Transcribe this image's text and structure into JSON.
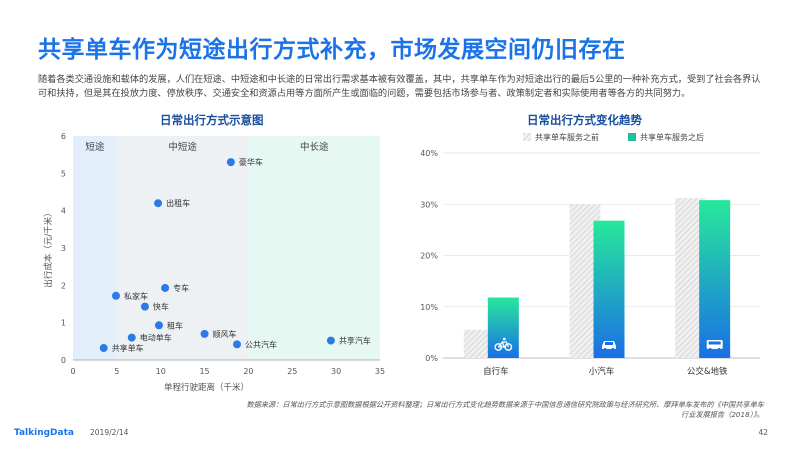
{
  "header": {
    "title": "共享单车作为短途出行方式补充，市场发展空间仍旧存在",
    "intro": "随着各类交通设施和载体的发展，人们在短途、中短途和中长途的日常出行需求基本被有效覆盖，其中，共享单车作为对短途出行的最后5公里的一种补充方式，受到了社会各界认可和扶持，但是其在投放力度、停放秩序、交通安全和资源占用等方面所产生或面临的问题，需要包括市场参与者、政策制定者和实际使用者等各方的共同努力。"
  },
  "colors": {
    "title": "#1a73e8",
    "point": "#2c7be5",
    "zone_short": "#e3eefb",
    "zone_mid": "#eef1f4",
    "zone_long": "#e6f8f2",
    "bar_before": "#d8d8d8",
    "bar_after_top": "#27e89a",
    "bar_after_bottom": "#1a6fe6"
  },
  "chart_data": [
    {
      "type": "scatter",
      "title": "日常出行方式示意图",
      "xlabel": "单程行驶距离（千米）",
      "ylabel": "出行成本（元/千米）",
      "xlim": [
        0,
        35
      ],
      "ylim": [
        0,
        6
      ],
      "xticks": [
        "0",
        "5",
        "10",
        "15",
        "20",
        "25",
        "30",
        "35"
      ],
      "yticks": [
        "0",
        "1",
        "2",
        "3",
        "4",
        "5",
        "6"
      ],
      "zones": [
        {
          "label": "短途",
          "from": 0,
          "to": 5
        },
        {
          "label": "中短途",
          "from": 5,
          "to": 20
        },
        {
          "label": "中长途",
          "from": 20,
          "to": 35
        }
      ],
      "points": [
        {
          "label": "豪华车",
          "x": 18,
          "y": 5.3
        },
        {
          "label": "出租车",
          "x": 9.7,
          "y": 4.2
        },
        {
          "label": "专车",
          "x": 10.5,
          "y": 1.93
        },
        {
          "label": "私家车",
          "x": 4.9,
          "y": 1.72
        },
        {
          "label": "快车",
          "x": 8.2,
          "y": 1.43
        },
        {
          "label": "租车",
          "x": 9.8,
          "y": 0.93
        },
        {
          "label": "顺风车",
          "x": 15,
          "y": 0.7
        },
        {
          "label": "电动单车",
          "x": 6.7,
          "y": 0.6
        },
        {
          "label": "公共汽车",
          "x": 18.7,
          "y": 0.42
        },
        {
          "label": "共享单车",
          "x": 3.5,
          "y": 0.32
        },
        {
          "label": "共享汽车",
          "x": 29.4,
          "y": 0.52
        }
      ]
    },
    {
      "type": "bar",
      "title": "日常出行方式变化趋势",
      "categories": [
        "自行车",
        "小汽车",
        "公交&地铁"
      ],
      "icons": [
        "bicycle-icon",
        "car-icon",
        "bus-icon"
      ],
      "ylim": [
        0,
        40
      ],
      "yticks": [
        "0%",
        "10%",
        "20%",
        "30%",
        "40%"
      ],
      "legend_position": "top-left",
      "series": [
        {
          "name": "共享单车服务之前",
          "values": [
            5.5,
            30,
            31.2
          ]
        },
        {
          "name": "共享单车服务之后",
          "values": [
            11.8,
            26.8,
            30.8
          ]
        }
      ]
    }
  ],
  "footer": {
    "source": "数据来源：日常出行方式示意图数据根据公开资料整理；日常出行方式变化趋势数据来源于中国信息通信研究院政策与经济研究所、摩拜单车发布的《中国共享单车行业发展报告（2018）》。",
    "brand": "TalkingData",
    "date": "2019/2/14",
    "page": "42"
  }
}
